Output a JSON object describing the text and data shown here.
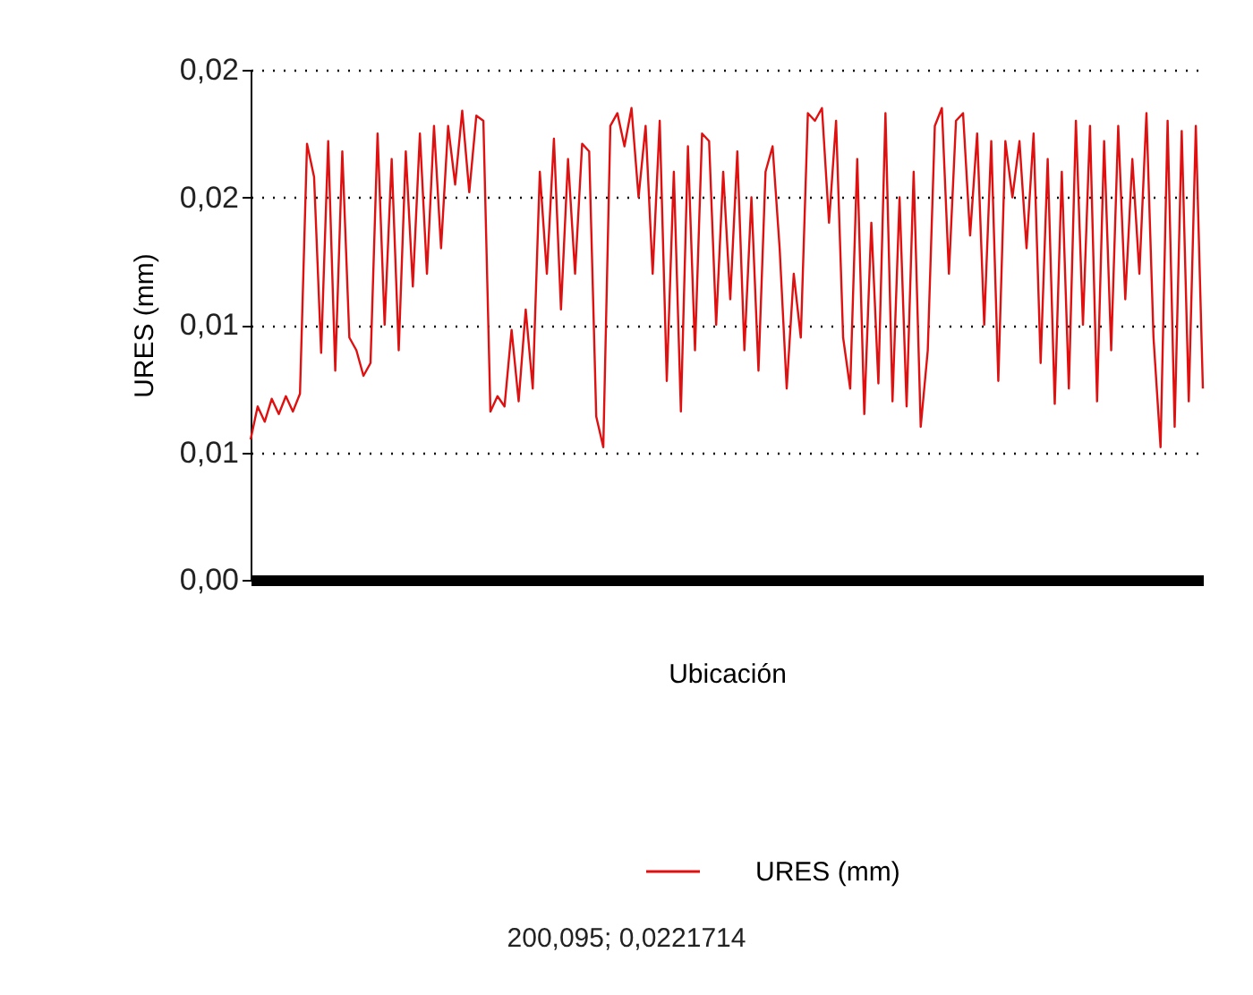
{
  "chart_data": {
    "type": "line",
    "xlabel": "Ubicación",
    "ylabel": "URES (mm)",
    "categories": [
      null,
      null,
      null,
      null,
      null,
      null,
      null,
      null,
      null,
      null,
      null,
      null,
      null,
      null,
      null,
      null,
      null,
      null,
      null,
      null,
      null,
      null,
      null,
      null,
      null,
      null,
      null,
      null,
      null,
      null,
      null,
      null,
      null,
      null,
      null,
      null,
      null,
      null,
      null,
      null,
      null,
      null,
      null,
      null,
      null,
      null,
      null,
      null,
      null,
      null,
      null,
      null,
      null,
      null,
      null,
      null,
      null,
      null,
      null,
      null,
      null,
      null,
      null,
      null,
      null,
      null,
      null,
      null,
      null,
      null,
      null,
      null,
      null,
      null,
      null,
      null,
      null,
      null,
      null,
      null,
      null,
      null,
      null,
      null,
      null,
      null,
      null,
      null,
      null,
      null,
      null,
      null,
      null,
      null,
      null,
      null,
      null,
      null,
      null,
      null,
      null,
      null,
      null,
      null,
      null,
      null,
      null,
      null,
      null,
      null,
      null,
      null,
      null,
      null,
      null,
      null,
      null,
      null,
      null,
      null,
      null,
      null,
      null,
      null,
      null,
      null,
      null,
      null,
      null,
      null,
      null,
      null,
      null,
      null,
      null,
      null
    ],
    "series": [
      {
        "name": "URES (mm)",
        "color": "#e01010",
        "values": [
          0.0055,
          0.0068,
          0.0062,
          0.0071,
          0.0065,
          0.0072,
          0.0066,
          0.0073,
          0.0171,
          0.0158,
          0.0089,
          0.0172,
          0.0082,
          0.0168,
          0.0095,
          0.009,
          0.008,
          0.0085,
          0.0175,
          0.01,
          0.0165,
          0.009,
          0.0168,
          0.0115,
          0.0175,
          0.012,
          0.0178,
          0.013,
          0.0178,
          0.0155,
          0.0184,
          0.0152,
          0.0182,
          0.018,
          0.0066,
          0.0072,
          0.0068,
          0.0098,
          0.007,
          0.0106,
          0.0075,
          0.016,
          0.012,
          0.0173,
          0.0106,
          0.0165,
          0.012,
          0.0171,
          0.0168,
          0.0064,
          0.0052,
          0.0178,
          0.0183,
          0.017,
          0.0185,
          0.015,
          0.0178,
          0.012,
          0.018,
          0.0078,
          0.016,
          0.0066,
          0.017,
          0.009,
          0.0175,
          0.0172,
          0.01,
          0.016,
          0.011,
          0.0168,
          0.009,
          0.015,
          0.0082,
          0.016,
          0.017,
          0.013,
          0.0075,
          0.012,
          0.0095,
          0.0183,
          0.018,
          0.0185,
          0.014,
          0.018,
          0.0095,
          0.0075,
          0.0165,
          0.0065,
          0.014,
          0.0077,
          0.0183,
          0.007,
          0.015,
          0.0068,
          0.016,
          0.006,
          0.009,
          0.0178,
          0.0185,
          0.012,
          0.018,
          0.0183,
          0.0135,
          0.0175,
          0.01,
          0.0172,
          0.0078,
          0.0172,
          0.015,
          0.0172,
          0.013,
          0.0175,
          0.0085,
          0.0165,
          0.0069,
          0.016,
          0.0075,
          0.018,
          0.01,
          0.0178,
          0.007,
          0.0172,
          0.009,
          0.0178,
          0.011,
          0.0165,
          0.012,
          0.0183,
          0.0095,
          0.0052,
          0.018,
          0.006,
          0.0176,
          0.007,
          0.0178,
          0.0075
        ]
      }
    ],
    "ylim": [
      0,
      0.02
    ],
    "yticks": [
      {
        "value": 0,
        "label": "0,00"
      },
      {
        "value": 0.005,
        "label": "0,01"
      },
      {
        "value": 0.01,
        "label": "0,01"
      },
      {
        "value": 0.015,
        "label": "0,02"
      },
      {
        "value": 0.02,
        "label": "0,02"
      }
    ],
    "grid": "y",
    "legend": "bottom",
    "tick_labels": "y",
    "annotations": [
      "200,095; 0,0221714"
    ]
  }
}
